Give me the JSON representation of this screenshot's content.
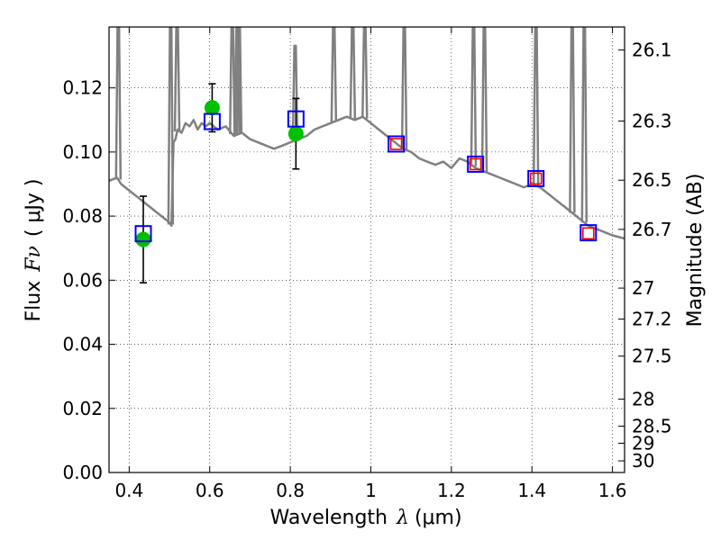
{
  "chart_data": {
    "type": "scatter",
    "title": "",
    "xlabel_text": "Wavelength",
    "xlabel_symbol": "λ",
    "xlabel_unit": "(μm)",
    "ylabel_text": "Flux",
    "ylabel_symbol": "Fν",
    "ylabel_unit": "( μJy )",
    "ylabel_right": "Magnitude (AB)",
    "xlim": [
      0.35,
      1.63
    ],
    "ylim": [
      0.0,
      0.139
    ],
    "x_ticks": [
      0.4,
      0.6,
      0.8,
      1.0,
      1.2,
      1.4,
      1.6
    ],
    "x_tick_labels": [
      "0.4",
      "0.6",
      "0.8",
      "1",
      "1.2",
      "1.4",
      "1.6"
    ],
    "y_ticks": [
      0.0,
      0.02,
      0.04,
      0.06,
      0.08,
      0.1,
      0.12
    ],
    "y_tick_labels": [
      "0.00",
      "0.02",
      "0.04",
      "0.06",
      "0.08",
      "0.10",
      "0.12"
    ],
    "mag_ticks": [
      26.1,
      26.3,
      26.5,
      26.7,
      27,
      27.2,
      27.5,
      28,
      28.5,
      29,
      30
    ],
    "mag_tick_labels": [
      "26.1",
      "26.3",
      "26.5",
      "26.7",
      "27",
      "27.2",
      "27.5",
      "28",
      "28.5",
      "29",
      "30"
    ],
    "grid": true,
    "colors": {
      "spectrum": "#808080",
      "model_box": "#0000ff",
      "synthetic_box": "#ff0000",
      "observed": "#00c000",
      "errorbar": "#000000"
    },
    "series": [
      {
        "name": "model spectrum",
        "kind": "line",
        "x": [
          0.35,
          0.37,
          0.38,
          0.39,
          0.4,
          0.42,
          0.44,
          0.46,
          0.48,
          0.5,
          0.505,
          0.51,
          0.515,
          0.52,
          0.53,
          0.54,
          0.55,
          0.56,
          0.57,
          0.58,
          0.59,
          0.6,
          0.62,
          0.64,
          0.66,
          0.68,
          0.7,
          0.72,
          0.74,
          0.76,
          0.78,
          0.8,
          0.82,
          0.84,
          0.86,
          0.88,
          0.9,
          0.92,
          0.94,
          0.96,
          0.98,
          1.0,
          1.02,
          1.04,
          1.06,
          1.08,
          1.1,
          1.12,
          1.14,
          1.16,
          1.18,
          1.2,
          1.22,
          1.24,
          1.26,
          1.28,
          1.3,
          1.32,
          1.34,
          1.36,
          1.38,
          1.4,
          1.42,
          1.44,
          1.46,
          1.48,
          1.5,
          1.52,
          1.54,
          1.56,
          1.58,
          1.6,
          1.63
        ],
        "y": [
          0.091,
          0.092,
          0.09,
          0.089,
          0.088,
          0.086,
          0.084,
          0.082,
          0.08,
          0.078,
          0.077,
          0.103,
          0.104,
          0.107,
          0.106,
          0.109,
          0.108,
          0.11,
          0.107,
          0.109,
          0.108,
          0.109,
          0.107,
          0.108,
          0.105,
          0.106,
          0.104,
          0.103,
          0.102,
          0.101,
          0.102,
          0.103,
          0.104,
          0.105,
          0.107,
          0.108,
          0.109,
          0.11,
          0.111,
          0.11,
          0.111,
          0.109,
          0.107,
          0.105,
          0.103,
          0.101,
          0.1,
          0.098,
          0.097,
          0.096,
          0.097,
          0.095,
          0.098,
          0.097,
          0.095,
          0.094,
          0.093,
          0.092,
          0.091,
          0.09,
          0.089,
          0.09,
          0.089,
          0.087,
          0.085,
          0.083,
          0.081,
          0.079,
          0.077,
          0.076,
          0.075,
          0.074,
          0.073
        ]
      },
      {
        "name": "emission lines",
        "kind": "spikes",
        "x": [
          0.373,
          0.503,
          0.519,
          0.656,
          0.668,
          0.673,
          0.812,
          0.908,
          0.955,
          0.985,
          1.083,
          1.255,
          1.282,
          1.41,
          1.5,
          1.53
        ],
        "y_top": [
          0.139,
          0.139,
          0.139,
          0.139,
          0.139,
          0.139,
          0.132,
          0.139,
          0.139,
          0.139,
          0.139,
          0.139,
          0.139,
          0.139,
          0.139,
          0.139
        ]
      },
      {
        "name": "model photometry",
        "kind": "open-square",
        "x": [
          0.435,
          0.606,
          0.814,
          1.063,
          1.26,
          1.41,
          1.54
        ],
        "y": [
          0.0745,
          0.1095,
          0.1103,
          0.1025,
          0.0962,
          0.0917,
          0.0748
        ]
      },
      {
        "name": "synthetic photometry",
        "kind": "small-square",
        "x": [
          1.063,
          1.26,
          1.41,
          1.54
        ],
        "y": [
          0.1025,
          0.0962,
          0.0917,
          0.0746
        ]
      },
      {
        "name": "observed photometry",
        "kind": "filled-circle",
        "x": [
          0.435,
          0.606,
          0.814
        ],
        "y": [
          0.0727,
          0.1138,
          0.1057
        ],
        "yerr": [
          0.0135,
          0.0075,
          0.011
        ]
      }
    ]
  }
}
